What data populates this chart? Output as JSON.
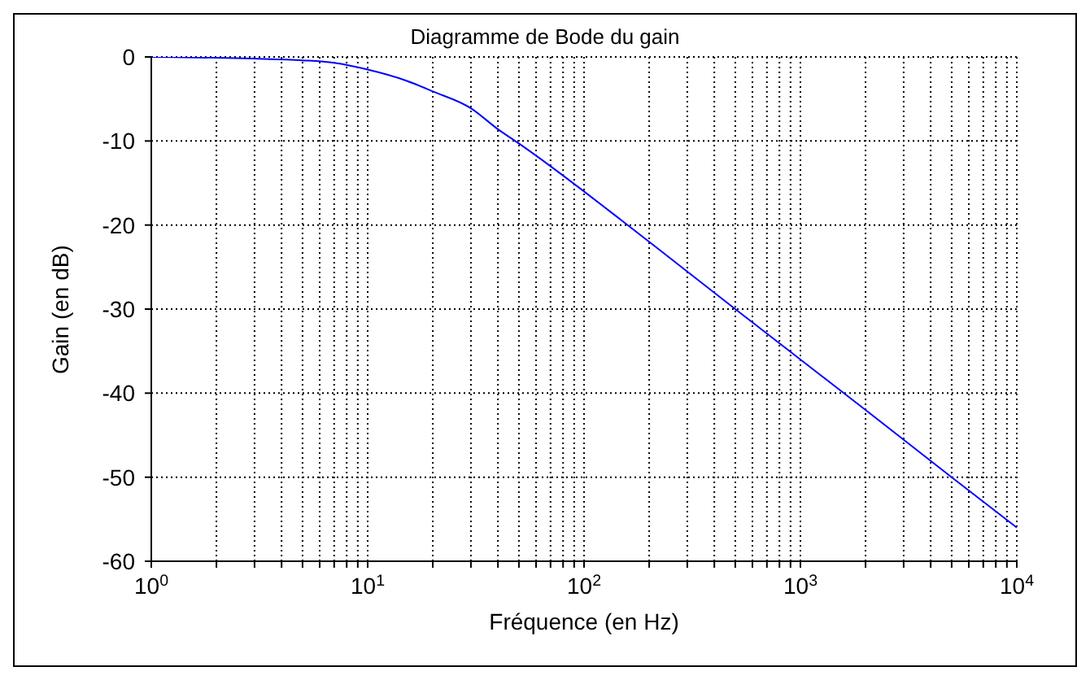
{
  "chart_data": {
    "type": "line",
    "title": "Diagramme de Bode du gain",
    "xlabel": "Fréquence (en Hz)",
    "ylabel": "Gain (en dB)",
    "log": "x",
    "grid": true,
    "legend": false,
    "marker": "none",
    "line_style": "solid",
    "x": [
      1,
      2,
      3,
      5,
      7,
      10,
      15,
      20,
      30,
      40,
      50,
      70,
      100,
      150,
      200,
      500,
      1000,
      2000,
      5000,
      10000
    ],
    "series": [
      {
        "color": "#0000ff",
        "values": [
          0,
          -0.1,
          -0.2,
          -0.4,
          -0.7,
          -1.5,
          -2.8,
          -4.1,
          -6.1,
          -8.6,
          -10.3,
          -13,
          -16,
          -19.5,
          -22,
          -30,
          -36,
          -42,
          -50,
          -56
        ]
      }
    ],
    "xlim": [
      1,
      10000
    ],
    "xticks": [
      {
        "value": 1,
        "label": "10$^{0}$"
      },
      {
        "value": 2,
        "label": null
      },
      {
        "value": 3,
        "label": null
      },
      {
        "value": 4,
        "label": null
      },
      {
        "value": 5,
        "label": null
      },
      {
        "value": 6,
        "label": null
      },
      {
        "value": 7,
        "label": null
      },
      {
        "value": 8,
        "label": null
      },
      {
        "value": 9,
        "label": null
      },
      {
        "value": 10,
        "label": "10$^{1}$"
      },
      {
        "value": 20,
        "label": null
      },
      {
        "value": 30,
        "label": null
      },
      {
        "value": 40,
        "label": null
      },
      {
        "value": 50,
        "label": null
      },
      {
        "value": 60,
        "label": null
      },
      {
        "value": 70,
        "label": null
      },
      {
        "value": 80,
        "label": null
      },
      {
        "value": 90,
        "label": null
      },
      {
        "value": 100,
        "label": "10$^{2}$"
      },
      {
        "value": 200,
        "label": null
      },
      {
        "value": 300,
        "label": null
      },
      {
        "value": 400,
        "label": null
      },
      {
        "value": 500,
        "label": null
      },
      {
        "value": 600,
        "label": null
      },
      {
        "value": 700,
        "label": null
      },
      {
        "value": 800,
        "label": null
      },
      {
        "value": 900,
        "label": null
      },
      {
        "value": 1000,
        "label": "10$^{3}$"
      },
      {
        "value": 2000,
        "label": null
      },
      {
        "value": 3000,
        "label": null
      },
      {
        "value": 4000,
        "label": null
      },
      {
        "value": 5000,
        "label": null
      },
      {
        "value": 6000,
        "label": null
      },
      {
        "value": 7000,
        "label": null
      },
      {
        "value": 8000,
        "label": null
      },
      {
        "value": 9000,
        "label": null
      },
      {
        "value": 10000,
        "label": "10$^{4}$"
      }
    ],
    "ylim": [
      -60,
      0
    ],
    "yticks": [
      -60,
      -50,
      -40,
      -30,
      -20,
      -10,
      0
    ]
  }
}
